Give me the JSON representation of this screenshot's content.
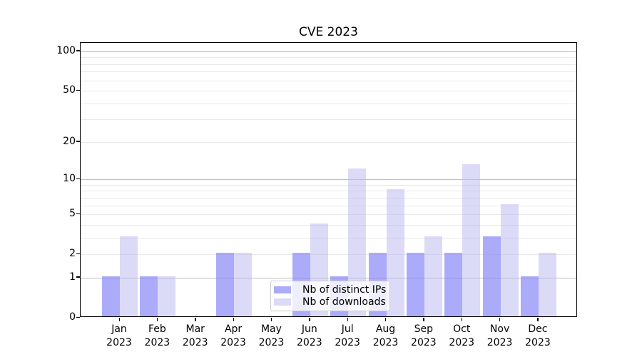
{
  "chart_data": {
    "type": "bar",
    "title": "CVE 2023",
    "categories": [
      "Jan",
      "Feb",
      "Mar",
      "Apr",
      "May",
      "Jun",
      "Jul",
      "Aug",
      "Sep",
      "Oct",
      "Nov",
      "Dec"
    ],
    "year_label": "2023",
    "series": [
      {
        "name": "Nb of distinct IPs",
        "color": "rgba(138,138,248,0.72)",
        "values": [
          1,
          1,
          0,
          2,
          0,
          2,
          1,
          2,
          2,
          2,
          3,
          1
        ]
      },
      {
        "name": "Nb of downloads",
        "color": "rgba(186,186,240,0.52)",
        "values": [
          3,
          1,
          0,
          2,
          0,
          4,
          12,
          8,
          3,
          13,
          6,
          2
        ]
      }
    ],
    "yscale": "log1p",
    "ylim": [
      0,
      116
    ],
    "y_ticks": [
      0,
      1,
      2,
      5,
      10,
      20,
      50,
      100
    ],
    "major_gridlines": [
      1,
      10,
      100
    ],
    "minor_gridlines": [
      2,
      3,
      4,
      5,
      6,
      7,
      8,
      9,
      20,
      30,
      40,
      50,
      60,
      70,
      80,
      90
    ],
    "grid": true,
    "legend_position": "lower center",
    "xlabel": "",
    "ylabel": ""
  }
}
